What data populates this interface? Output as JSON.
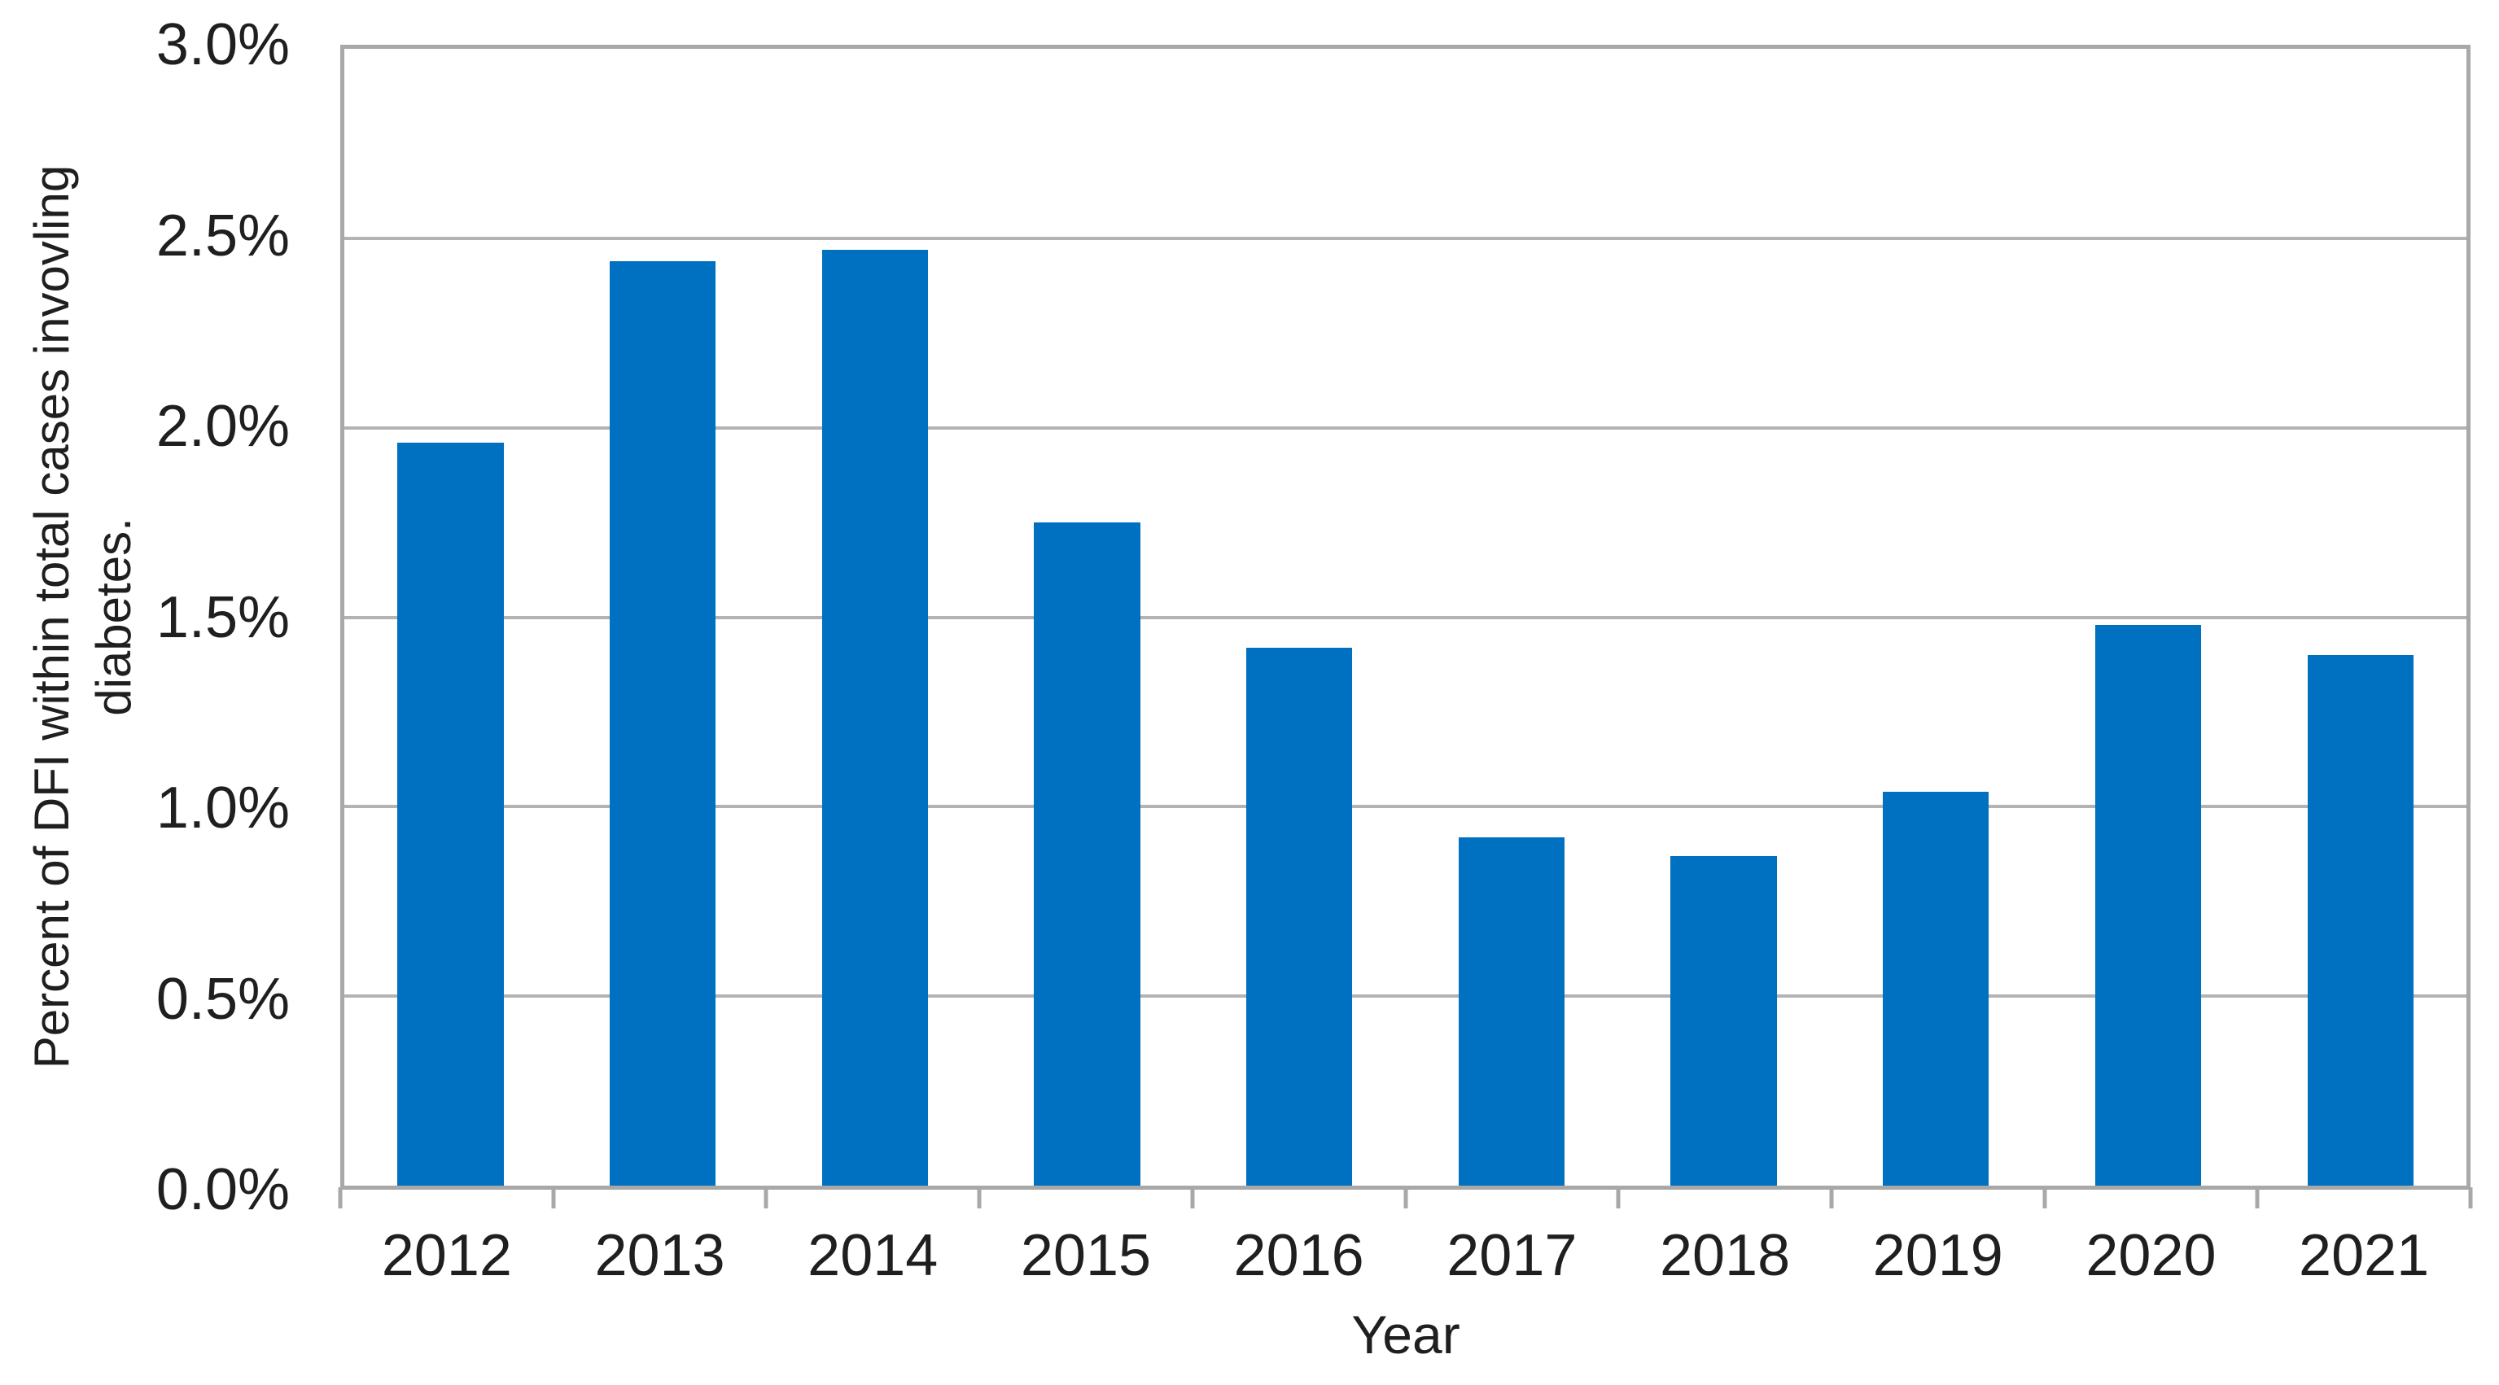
{
  "figure": {
    "background_color": "#ffffff"
  },
  "chart_data": {
    "type": "bar",
    "title": "",
    "categories": [
      "2012",
      "2013",
      "2014",
      "2015",
      "2016",
      "2017",
      "2018",
      "2019",
      "2020",
      "2021"
    ],
    "values": [
      1.96,
      2.44,
      2.47,
      1.75,
      1.42,
      0.92,
      0.87,
      1.04,
      1.48,
      1.4
    ],
    "value_unit": "%",
    "xlabel": "Year",
    "ylabel": "Percent of DFI within total cases invovling diabetes.",
    "ylabel_lines": [
      "Percent of DFI within total cases invovling",
      "diabetes."
    ],
    "ylim": [
      0,
      3.0
    ],
    "y_ticks": [
      {
        "value": 3.0,
        "label": "3.0%"
      },
      {
        "value": 2.5,
        "label": "2.5%"
      },
      {
        "value": 2.0,
        "label": "2.0%"
      },
      {
        "value": 1.5,
        "label": "1.5%"
      },
      {
        "value": 1.0,
        "label": "1.0%"
      },
      {
        "value": 0.5,
        "label": "0.5%"
      },
      {
        "value": 0.0,
        "label": "0.0%"
      }
    ],
    "gridline_values": [
      2.5,
      2.0,
      1.5,
      1.0,
      0.5
    ],
    "grid": true,
    "legend_position": "none",
    "colors": {
      "bar": "#0070c0",
      "gridline": "#b3b3b3",
      "axis": "#a8a8a8",
      "text": "#1f1f1f"
    }
  }
}
